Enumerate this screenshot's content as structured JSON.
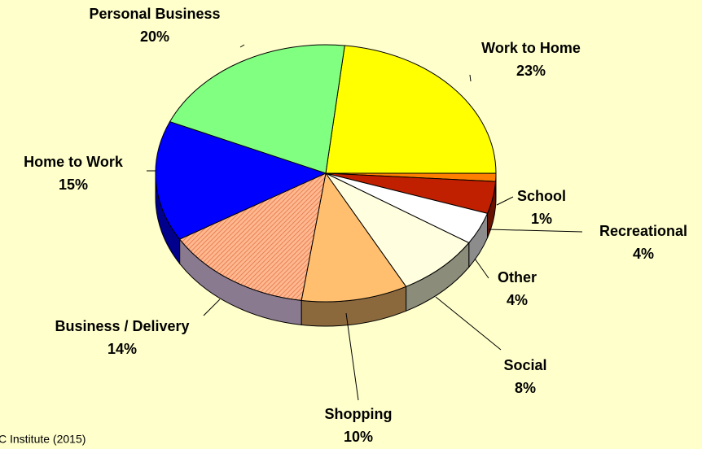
{
  "chart_data": {
    "type": "pie",
    "categories": [
      "Work to Home",
      "School",
      "Recreational",
      "Other",
      "Social",
      "Shopping",
      "Business / Delivery",
      "Home to Work",
      "Personal Business"
    ],
    "values": [
      23,
      1,
      4,
      4,
      8,
      10,
      14,
      15,
      20
    ],
    "value_labels": [
      "23%",
      "1%",
      "4%",
      "4%",
      "8%",
      "10%",
      "14%",
      "15%",
      "20%"
    ],
    "colors": [
      "#ffff00",
      "#ff8000",
      "#c02000",
      "#ffffff",
      "#ffffe0",
      "#ffbf6f",
      "#ff9f70",
      "#0000ff",
      "#80ff80"
    ],
    "source": "C Institute (2015)"
  }
}
